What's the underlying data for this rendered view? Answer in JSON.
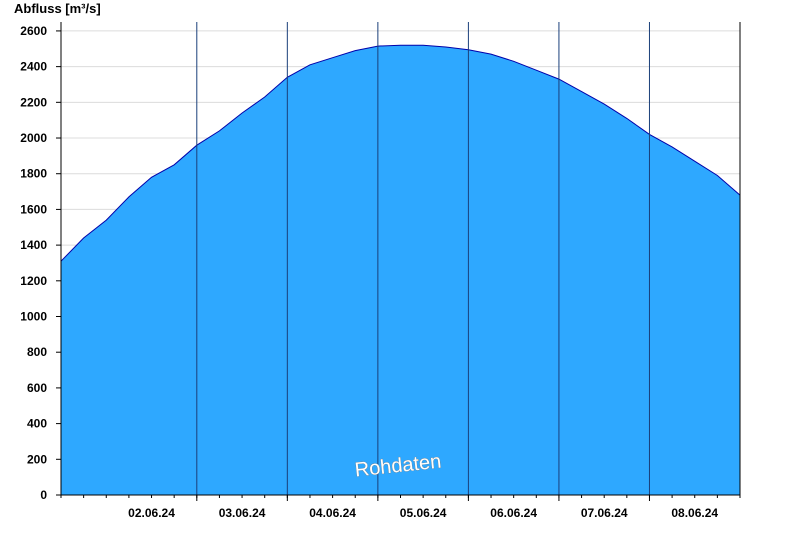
{
  "chart_data": {
    "type": "area",
    "ylabel": "Abfluss [m³/s]",
    "xlabel": "",
    "title": "",
    "ylim": [
      0,
      2650
    ],
    "yticks": [
      0,
      200,
      400,
      600,
      800,
      1000,
      1200,
      1400,
      1600,
      1800,
      2000,
      2200,
      2400,
      2600
    ],
    "xlim": [
      "01.06.24 12:00",
      "08.06.24 24:00"
    ],
    "xtick_labels": [
      "02.06.24",
      "03.06.24",
      "04.06.24",
      "05.06.24",
      "06.06.24",
      "07.06.24",
      "08.06.24"
    ],
    "day_boundaries": [
      "02.06.24 24:00",
      "03.06.24 24:00",
      "04.06.24 24:00",
      "05.06.24 24:00",
      "06.06.24 24:00",
      "07.06.24 24:00"
    ],
    "grid": true,
    "annotation": "Rohdaten",
    "series": [
      {
        "x": [
          "01.06.24 12:00",
          "01.06.24 18:00",
          "02.06.24 00:00",
          "02.06.24 06:00",
          "02.06.24 12:00",
          "02.06.24 18:00",
          "03.06.24 00:00",
          "03.06.24 06:00",
          "03.06.24 12:00",
          "03.06.24 18:00",
          "04.06.24 00:00",
          "04.06.24 06:00",
          "04.06.24 12:00",
          "04.06.24 18:00",
          "05.06.24 00:00",
          "05.06.24 06:00",
          "05.06.24 12:00",
          "05.06.24 18:00",
          "06.06.24 00:00",
          "06.06.24 06:00",
          "06.06.24 12:00",
          "06.06.24 18:00",
          "07.06.24 00:00",
          "07.06.24 06:00",
          "07.06.24 12:00",
          "07.06.24 18:00",
          "08.06.24 00:00",
          "08.06.24 06:00",
          "08.06.24 12:00",
          "08.06.24 18:00",
          "08.06.24 24:00"
        ],
        "y": [
          1310,
          1440,
          1540,
          1670,
          1780,
          1850,
          1960,
          2040,
          2140,
          2230,
          2340,
          2410,
          2450,
          2490,
          2515,
          2520,
          2520,
          2510,
          2495,
          2470,
          2430,
          2380,
          2330,
          2260,
          2190,
          2110,
          2020,
          1950,
          1870,
          1790,
          1680
        ]
      }
    ],
    "colors": {
      "fill": "#2ea8ff",
      "line": "#0000aa",
      "gridline": "#dcdcdc",
      "day_line": "#1a3f7a"
    }
  }
}
